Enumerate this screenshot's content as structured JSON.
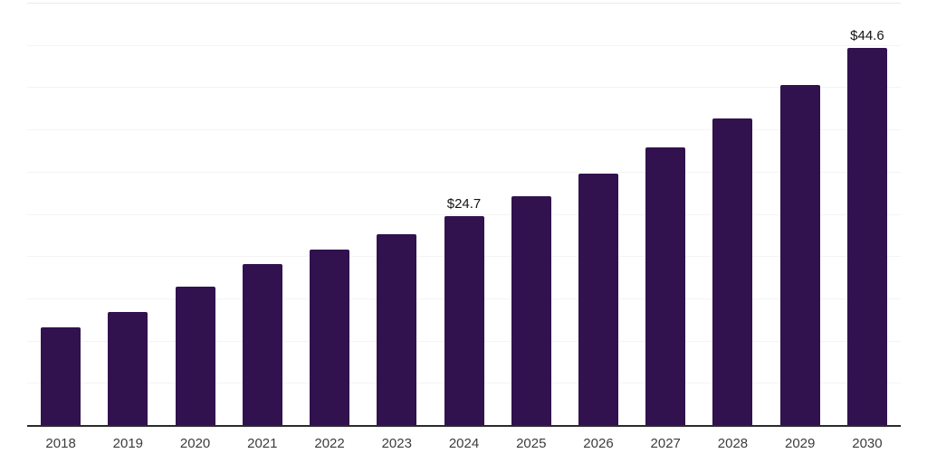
{
  "chart_data": {
    "type": "bar",
    "title": "",
    "xlabel": "",
    "ylabel": "",
    "categories": [
      "2018",
      "2019",
      "2020",
      "2021",
      "2022",
      "2023",
      "2024",
      "2025",
      "2026",
      "2027",
      "2028",
      "2029",
      "2030"
    ],
    "values": [
      11.6,
      13.4,
      16.4,
      19.1,
      20.8,
      22.6,
      24.7,
      27.1,
      29.8,
      32.9,
      36.3,
      40.3,
      44.6
    ],
    "data_labels": [
      {
        "category": "2024",
        "text": "$24.7"
      },
      {
        "category": "2030",
        "text": "$44.6"
      }
    ],
    "ylim": [
      0,
      50
    ],
    "gridline_step": 5,
    "grid": true,
    "y_axis_tick_labels_visible": false,
    "legend": "none"
  },
  "colors": {
    "background": "#ffffff",
    "bar": "#31124e",
    "gridline": "#f4f4f4",
    "top_gridline": "#e9e9e9",
    "axis_line": "#2b2b2b",
    "year_label": "#3c3c3c",
    "value_label": "#141414"
  }
}
